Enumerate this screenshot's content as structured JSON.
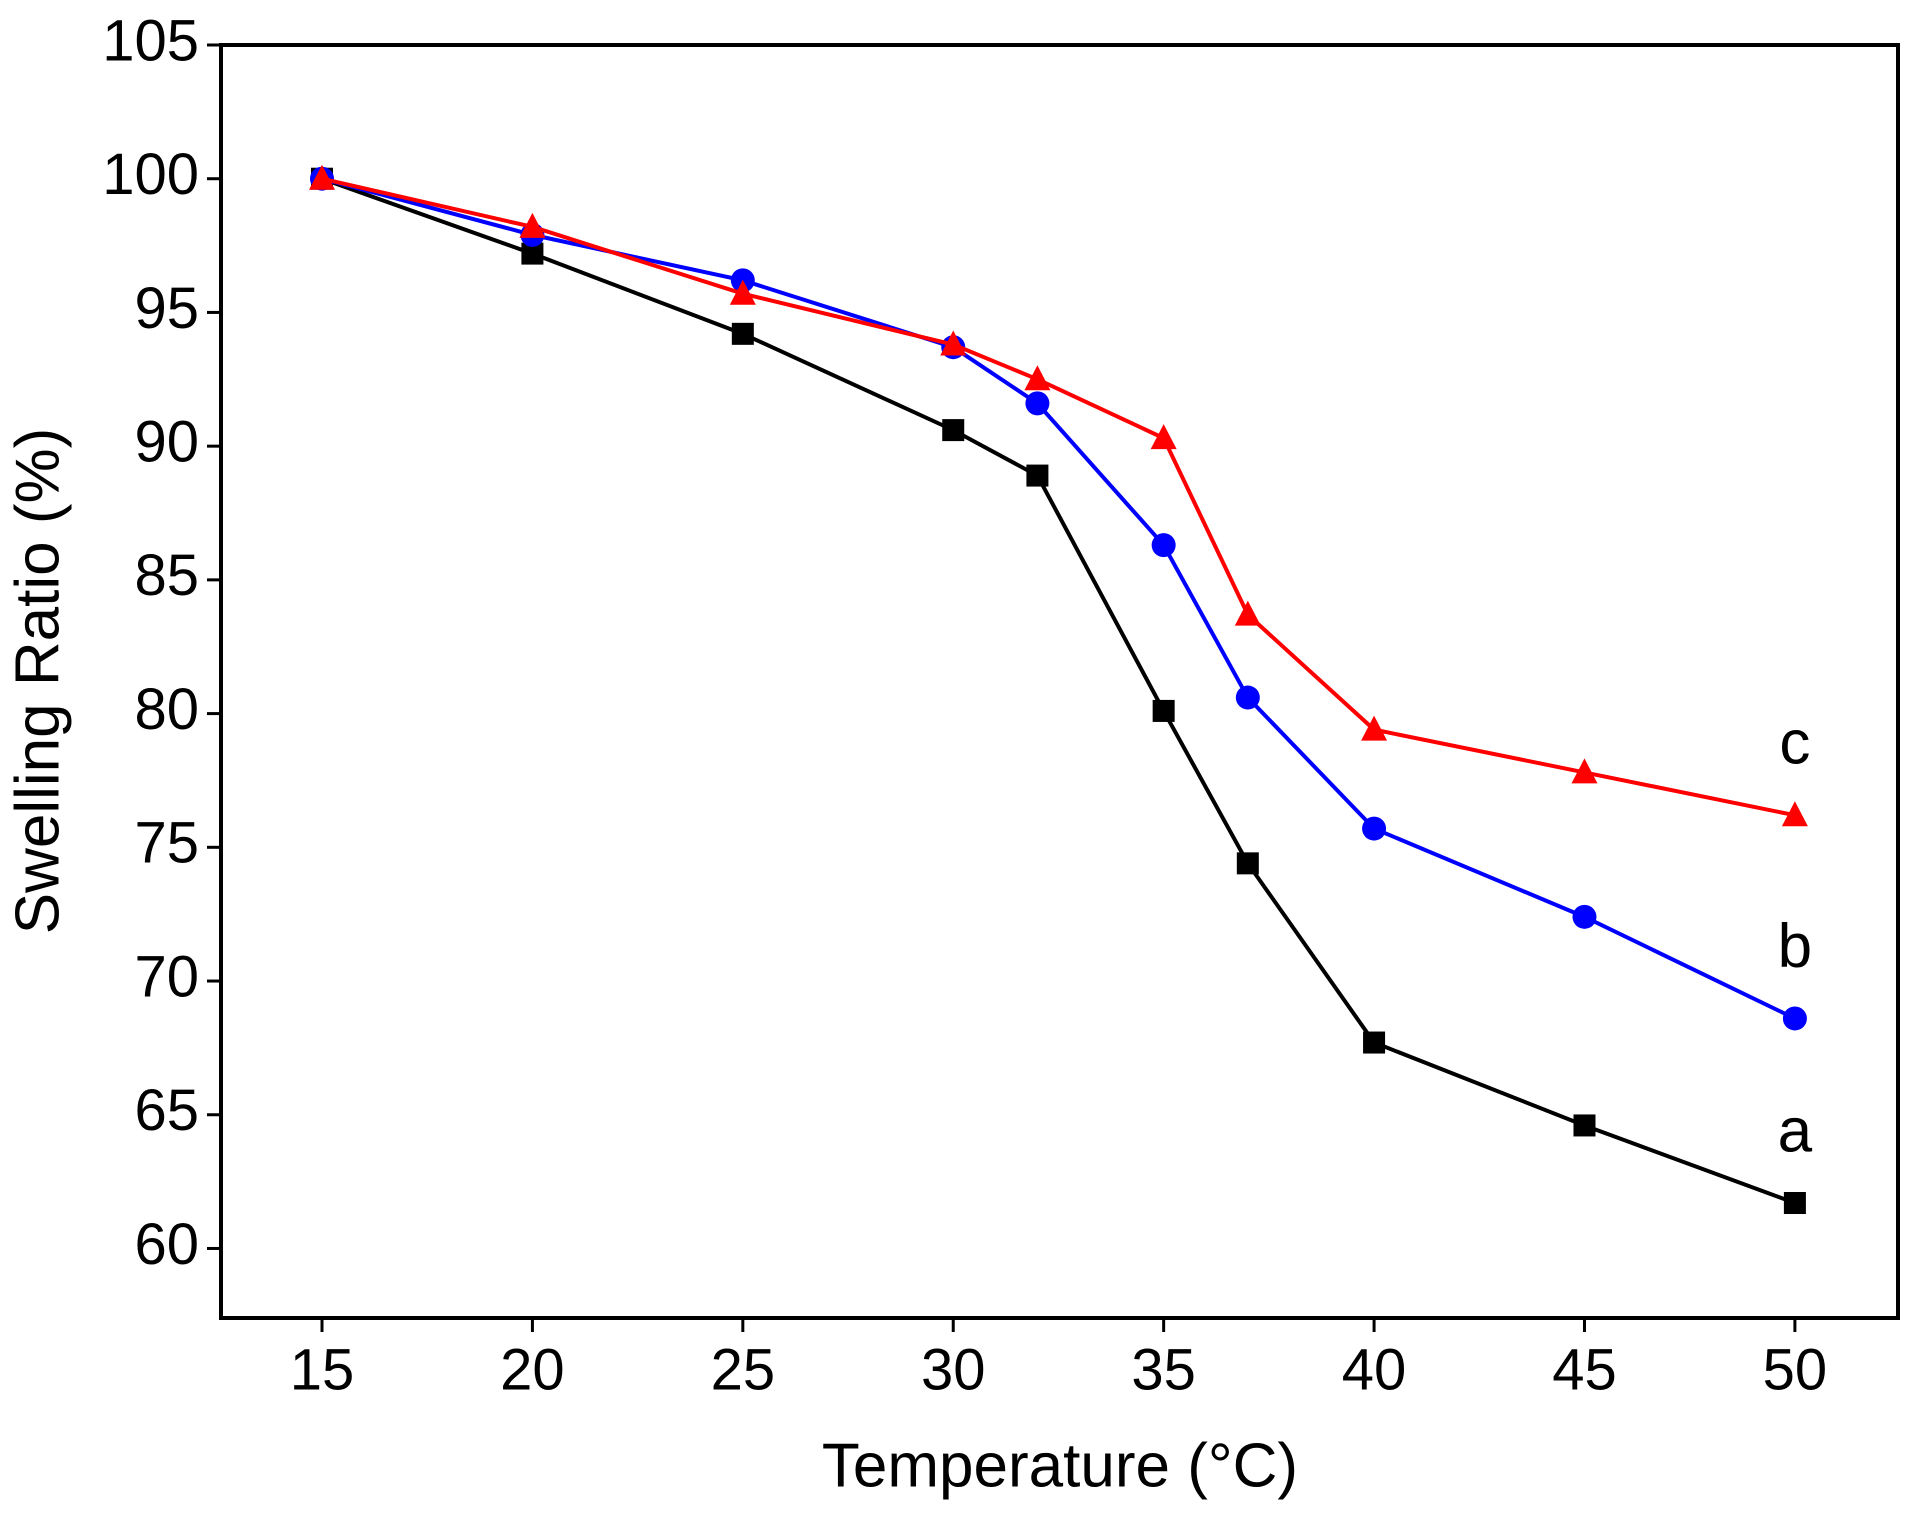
{
  "chart_data": {
    "type": "line",
    "x_label": "Temperature (°C)",
    "y_label": "Swelling Ratio (%)",
    "x": [
      15,
      20,
      25,
      30,
      32,
      35,
      37,
      40,
      45,
      50
    ],
    "series": [
      {
        "name": "a",
        "color": "#000000",
        "marker": "square",
        "values": [
          100,
          97.2,
          94.2,
          90.6,
          88.9,
          80.1,
          74.4,
          67.7,
          64.6,
          61.7
        ]
      },
      {
        "name": "b",
        "color": "#0000ff",
        "marker": "circle",
        "values": [
          100,
          97.9,
          96.2,
          93.7,
          91.6,
          86.3,
          80.6,
          75.7,
          72.4,
          68.6
        ]
      },
      {
        "name": "c",
        "color": "#ff0000",
        "marker": "triangle",
        "values": [
          100,
          98.2,
          95.7,
          93.8,
          92.5,
          90.3,
          83.7,
          79.4,
          77.8,
          76.2
        ]
      }
    ],
    "xlim": [
      12.6,
      52.45
    ],
    "ylim": [
      57.4,
      105
    ],
    "xticks": [
      15,
      20,
      25,
      30,
      35,
      40,
      45,
      50
    ],
    "yticks": [
      60,
      65,
      70,
      75,
      80,
      85,
      90,
      95,
      100,
      105
    ],
    "grid": false
  }
}
